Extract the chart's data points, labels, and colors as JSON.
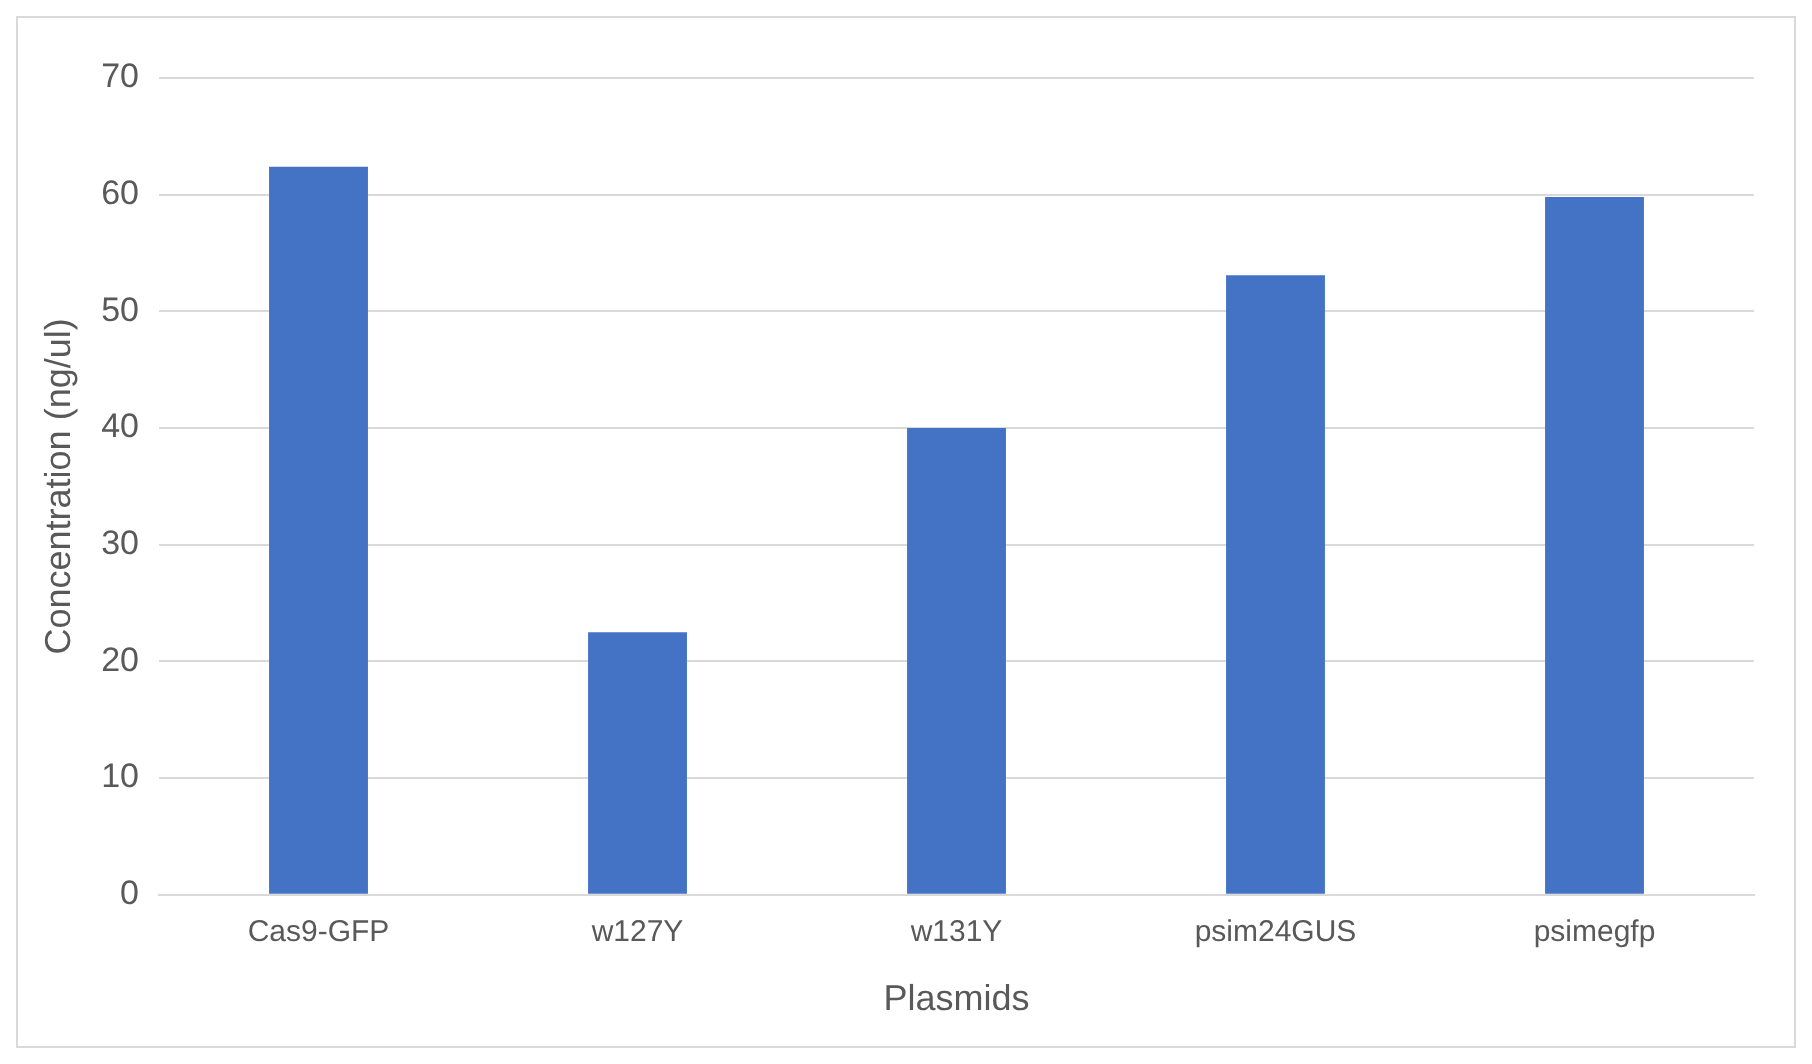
{
  "chart_data": {
    "type": "bar",
    "xlabel": "Plasmids",
    "ylabel": "Concentration (ng/ul)",
    "categories": [
      "Cas9-GFP",
      "w127Y",
      "w131Y",
      "psim24GUS",
      "psimegfp"
    ],
    "values": [
      62.4,
      22.5,
      40.0,
      53.1,
      59.8
    ],
    "color": "#4472c4",
    "ylim": [
      0,
      70
    ],
    "yticks": [
      0,
      10,
      20,
      30,
      40,
      50,
      60,
      70
    ],
    "grid": "y",
    "legend": false
  }
}
